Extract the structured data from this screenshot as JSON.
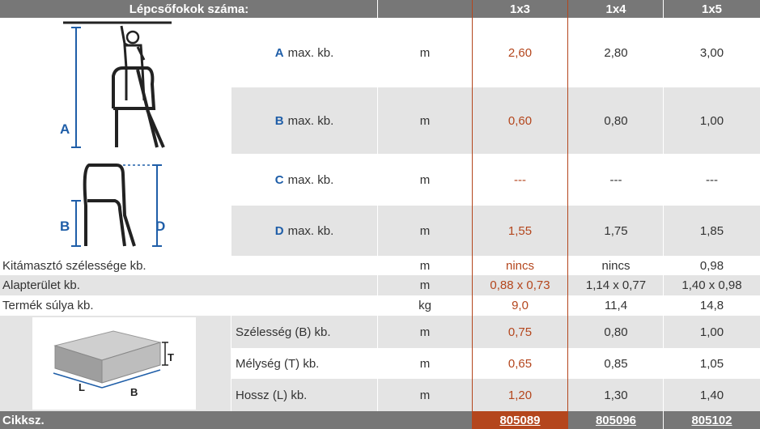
{
  "header": {
    "title": "Lépcsőfokok száma:",
    "columns": [
      "1x3",
      "1x4",
      "1x5"
    ]
  },
  "rows_dims": [
    {
      "letter": "A",
      "label": "max. kb.",
      "unit": "m",
      "values": [
        "2,60",
        "2,80",
        "3,00"
      ]
    },
    {
      "letter": "B",
      "label": "max. kb.",
      "unit": "m",
      "values": [
        "0,60",
        "0,80",
        "1,00"
      ]
    },
    {
      "letter": "C",
      "label": "max. kb.",
      "unit": "m",
      "values": [
        "---",
        "---",
        "---"
      ]
    },
    {
      "letter": "D",
      "label": "max. kb.",
      "unit": "m",
      "values": [
        "1,55",
        "1,75",
        "1,85"
      ]
    }
  ],
  "rows_general": [
    {
      "label": "Kitámasztó szélessége kb.",
      "unit": "m",
      "values": [
        "nincs",
        "nincs",
        "0,98"
      ]
    },
    {
      "label": "Alapterület kb.",
      "unit": "m",
      "values": [
        "0,88 x 0,73",
        "1,14 x 0,77",
        "1,40 x 0,98"
      ]
    },
    {
      "label": "Termék súlya kb.",
      "unit": "kg",
      "values": [
        "9,0",
        "11,4",
        "14,8"
      ]
    }
  ],
  "rows_package": [
    {
      "label": "Szélesség (B) kb.",
      "unit": "m",
      "values": [
        "0,75",
        "0,80",
        "1,00"
      ]
    },
    {
      "label": "Mélység (T) kb.",
      "unit": "m",
      "values": [
        "0,65",
        "0,85",
        "1,05"
      ]
    },
    {
      "label": "Hossz (L) kb.",
      "unit": "m",
      "values": [
        "1,20",
        "1,30",
        "1,40"
      ]
    }
  ],
  "footer": {
    "label": "Cikksz.",
    "codes": [
      "805089",
      "805096",
      "805102"
    ]
  },
  "figure_labels": {
    "a": "A",
    "b": "B",
    "d": "D",
    "t": "T",
    "l": "L",
    "box_b": "B"
  },
  "colors": {
    "header_bg": "#777777",
    "row_gray": "#e4e4e4",
    "highlight": "#b4461d",
    "letter_blue": "#1f5ea8"
  },
  "icons": [
    "ladder-person-diagram",
    "ladder-side-diagram",
    "package-box-diagram"
  ]
}
